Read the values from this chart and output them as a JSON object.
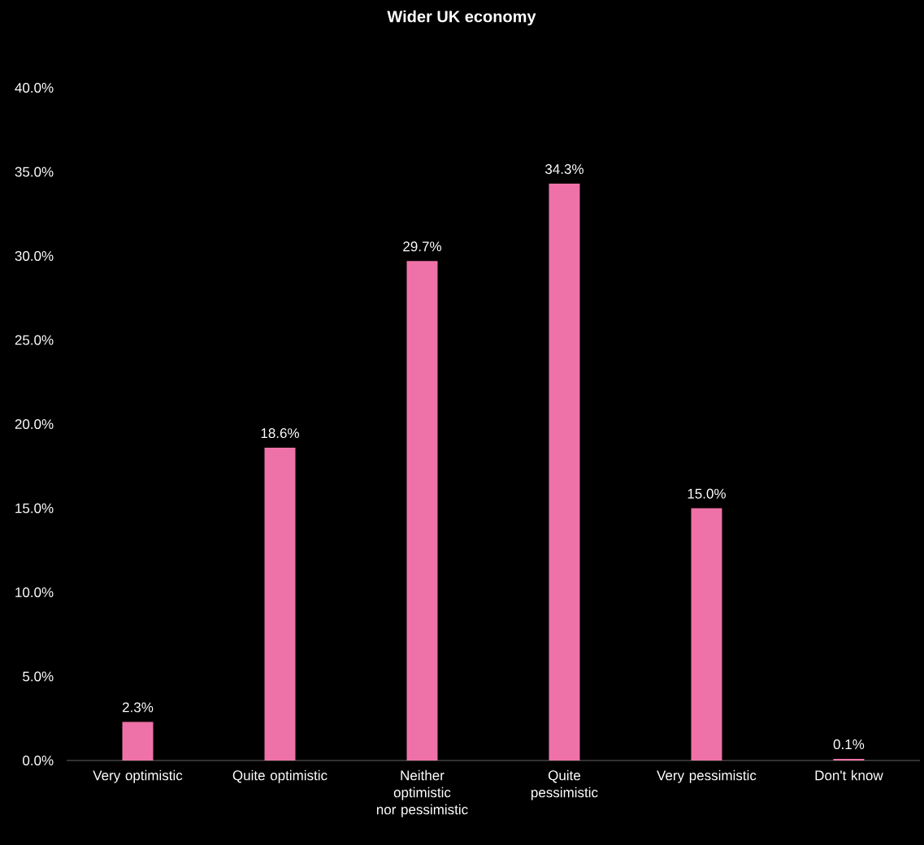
{
  "chart_data": {
    "type": "bar",
    "title": "Wider UK economy",
    "categories": [
      "Very optimistic",
      "Quite optimistic",
      "Neither optimistic nor pessimistic",
      "Quite pessimistic",
      "Very pessimistic",
      "Don't know"
    ],
    "values": [
      2.3,
      18.6,
      29.7,
      34.3,
      15.0,
      0.1
    ],
    "value_labels": [
      "2.3%",
      "18.6%",
      "29.7%",
      "34.3%",
      "15.0%",
      "0.1%"
    ],
    "color": "#ee72a8",
    "ylim": [
      0,
      40
    ],
    "yticks": [
      {
        "value": 0,
        "label": "0.0%"
      },
      {
        "value": 5,
        "label": "5.0%"
      },
      {
        "value": 10,
        "label": "10.0%"
      },
      {
        "value": 15,
        "label": "15.0%"
      },
      {
        "value": 20,
        "label": "20.0%"
      },
      {
        "value": 25,
        "label": "25.0%"
      },
      {
        "value": 30,
        "label": "30.0%"
      },
      {
        "value": 35,
        "label": "35.0%"
      },
      {
        "value": 40,
        "label": "40.0%"
      }
    ]
  }
}
